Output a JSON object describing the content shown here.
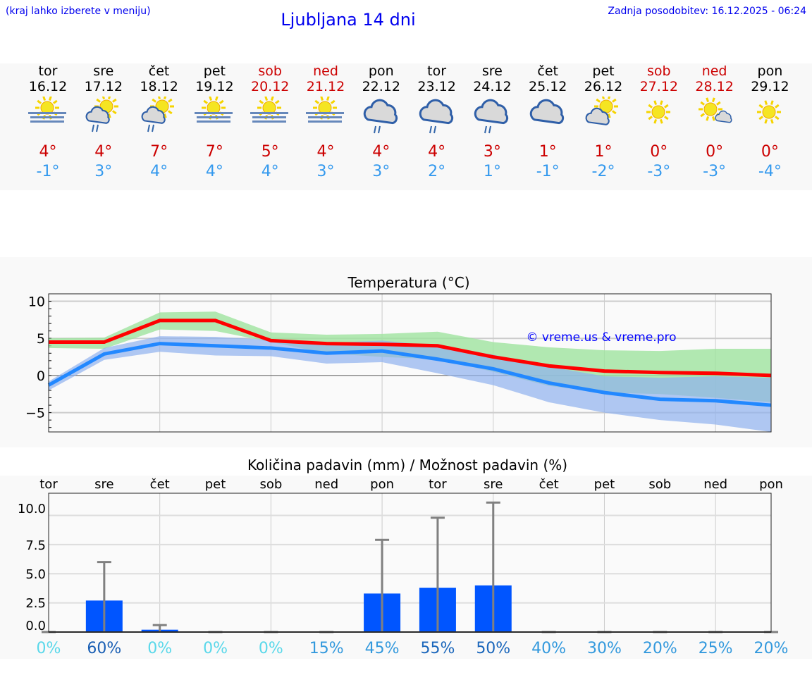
{
  "header": {
    "hint": "(kraj lahko izberete v meniju)",
    "title": "Ljubljana 14 dni",
    "updated": "Zadnja posodobitev: 16.12.2025 - 06:24"
  },
  "colors": {
    "weekend": "#cc0000",
    "max_temp": "#cc0000",
    "min_temp": "#3399ee",
    "bar": "#0055ff",
    "errorbar": "#808080"
  },
  "days": [
    {
      "name": "tor",
      "date": "16.12",
      "weekend": false,
      "icon": "fog-sun-icon",
      "max": "4°",
      "min": "-1°"
    },
    {
      "name": "sre",
      "date": "17.12",
      "weekend": false,
      "icon": "sun-cloud-rain-icon",
      "max": "4°",
      "min": "3°"
    },
    {
      "name": "čet",
      "date": "18.12",
      "weekend": false,
      "icon": "sun-cloud-rain-icon",
      "max": "7°",
      "min": "4°"
    },
    {
      "name": "pet",
      "date": "19.12",
      "weekend": false,
      "icon": "fog-sun-icon",
      "max": "7°",
      "min": "4°"
    },
    {
      "name": "sob",
      "date": "20.12",
      "weekend": true,
      "icon": "fog-sun-icon",
      "max": "5°",
      "min": "4°"
    },
    {
      "name": "ned",
      "date": "21.12",
      "weekend": true,
      "icon": "fog-sun-icon",
      "max": "4°",
      "min": "3°"
    },
    {
      "name": "pon",
      "date": "22.12",
      "weekend": false,
      "icon": "cloud-rain-icon",
      "max": "4°",
      "min": "3°"
    },
    {
      "name": "tor",
      "date": "23.12",
      "weekend": false,
      "icon": "cloud-rain-icon",
      "max": "4°",
      "min": "2°"
    },
    {
      "name": "sre",
      "date": "24.12",
      "weekend": false,
      "icon": "cloud-rain-icon",
      "max": "3°",
      "min": "1°"
    },
    {
      "name": "čet",
      "date": "25.12",
      "weekend": false,
      "icon": "cloud-icon",
      "max": "1°",
      "min": "-1°"
    },
    {
      "name": "pet",
      "date": "26.12",
      "weekend": false,
      "icon": "sun-cloud-icon",
      "max": "1°",
      "min": "-2°"
    },
    {
      "name": "sob",
      "date": "27.12",
      "weekend": true,
      "icon": "sun-icon",
      "max": "0°",
      "min": "-3°"
    },
    {
      "name": "ned",
      "date": "28.12",
      "weekend": true,
      "icon": "sun-small-cloud-icon",
      "max": "0°",
      "min": "-3°"
    },
    {
      "name": "pon",
      "date": "29.12",
      "weekend": false,
      "icon": "sun-icon",
      "max": "0°",
      "min": "-4°"
    }
  ],
  "chart_data": [
    {
      "type": "line",
      "title": "Temperatura (°C)",
      "watermark": "© vreme.us & vreme.pro",
      "categories": [
        "tor",
        "sre",
        "čet",
        "pet",
        "sob",
        "ned",
        "pon",
        "tor",
        "sre",
        "čet",
        "pet",
        "sob",
        "ned",
        "pon"
      ],
      "ylim": [
        -7.6,
        11
      ],
      "yticks": [
        10,
        5,
        0,
        -5
      ],
      "grid": true,
      "series": [
        {
          "key": "max",
          "color": "#ff0000",
          "values": [
            4.5,
            4.5,
            7.4,
            7.4,
            4.7,
            4.3,
            4.2,
            4.0,
            2.5,
            1.3,
            0.6,
            0.4,
            0.3,
            0.0
          ],
          "band_upper": [
            5.0,
            5.1,
            8.5,
            8.6,
            5.8,
            5.5,
            5.6,
            5.9,
            4.5,
            3.8,
            3.4,
            3.3,
            3.6,
            3.6
          ],
          "band_lower": [
            3.7,
            3.6,
            6.2,
            6.0,
            4.5,
            3.0,
            2.5,
            2.2,
            0.5,
            -1.4,
            -2.3,
            -2.5,
            -3.0,
            -3.6
          ],
          "band_color": "#9fe39f"
        },
        {
          "key": "min",
          "color": "#2288ff",
          "values": [
            -1.3,
            2.9,
            4.3,
            4.0,
            3.7,
            3.0,
            3.3,
            2.2,
            0.9,
            -1.0,
            -2.3,
            -3.2,
            -3.4,
            -4.0
          ],
          "band_upper": [
            -0.8,
            3.7,
            5.3,
            5.2,
            4.8,
            4.4,
            4.7,
            4.0,
            2.8,
            1.2,
            -0.1,
            -0.3,
            -0.1,
            -0.3
          ],
          "band_lower": [
            -2.0,
            2.1,
            3.2,
            2.7,
            2.6,
            1.6,
            1.8,
            0.3,
            -1.3,
            -3.6,
            -5.0,
            -6.0,
            -6.6,
            -7.6
          ],
          "band_color": "#8fb0ee"
        }
      ]
    },
    {
      "type": "bar",
      "title": "Količina padavin (mm) / Možnost padavin (%)",
      "categories": [
        "tor",
        "sre",
        "čet",
        "pet",
        "sob",
        "ned",
        "pon",
        "tor",
        "sre",
        "čet",
        "pet",
        "sob",
        "ned",
        "pon"
      ],
      "ylim": [
        0,
        11.9
      ],
      "yticks": [
        "0.0",
        "2.5",
        "5.0",
        "7.5",
        "10.0"
      ],
      "grid": true,
      "values": [
        0,
        2.7,
        0.2,
        0,
        0,
        0,
        3.3,
        3.8,
        4.0,
        0,
        0,
        0,
        0,
        0
      ],
      "error_max": [
        0,
        6.0,
        0.6,
        0,
        0,
        0,
        7.9,
        9.8,
        11.1,
        0,
        0,
        0,
        0,
        0
      ],
      "probability": [
        "0%",
        "60%",
        "0%",
        "0%",
        "0%",
        "15%",
        "45%",
        "55%",
        "50%",
        "40%",
        "30%",
        "20%",
        "25%",
        "20%"
      ],
      "probability_colors": [
        "#5ad8ea",
        "#1a5fb4",
        "#5ad8ea",
        "#5ad8ea",
        "#5ad8ea",
        "#3399dd",
        "#3399dd",
        "#1a66bb",
        "#1a66bb",
        "#3399dd",
        "#3399dd",
        "#3399dd",
        "#3399dd",
        "#3399dd"
      ]
    }
  ]
}
